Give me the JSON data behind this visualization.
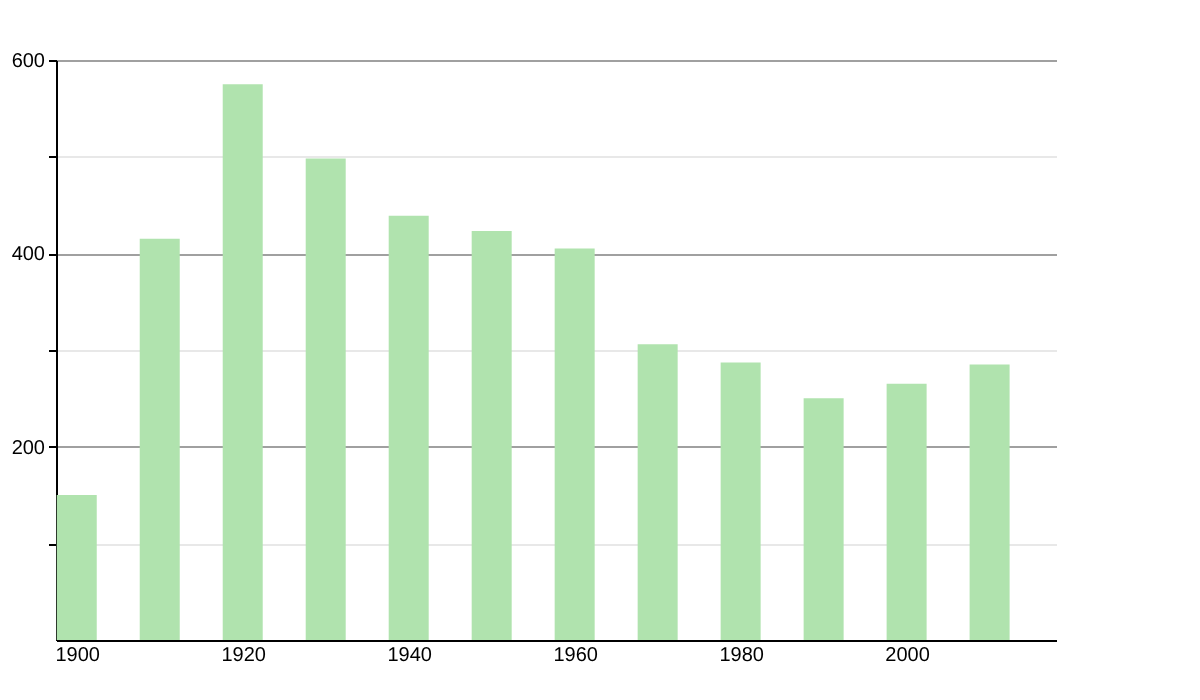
{
  "chart_data": {
    "type": "bar",
    "x": [
      1900,
      1910,
      1920,
      1930,
      1940,
      1950,
      1960,
      1970,
      1980,
      1990,
      2000,
      2010
    ],
    "values": [
      150,
      415,
      575,
      498,
      439,
      423,
      405,
      306,
      287,
      250,
      265,
      285
    ],
    "color": "#b0e3ae",
    "xlim": [
      1897.5,
      2018
    ],
    "xticks": [
      1900,
      1920,
      1940,
      1960,
      1980,
      2000
    ],
    "ylim": [
      0,
      600
    ],
    "yticks": [
      {
        "value": 100,
        "label": null
      },
      200,
      {
        "value": 300,
        "label": null
      },
      400,
      {
        "value": 500,
        "label": null
      },
      600
    ],
    "grid": "y"
  }
}
